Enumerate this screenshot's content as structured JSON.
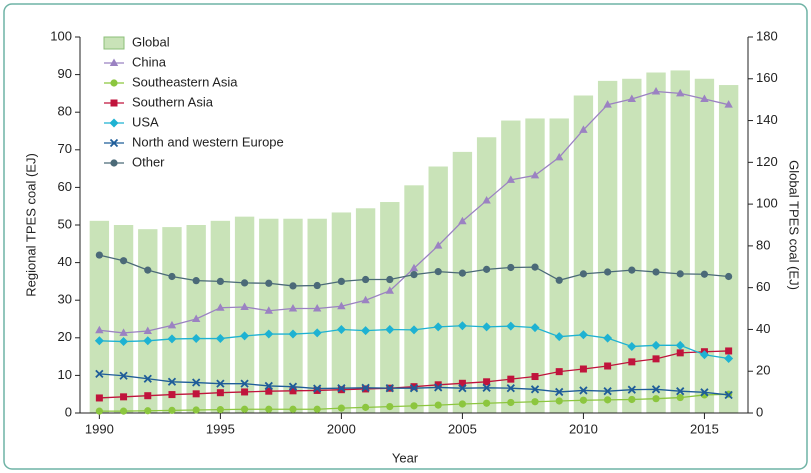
{
  "chart_data": {
    "type": "combo",
    "xlabel": "Year",
    "ylabel": "Regional TPES coal (EJ)",
    "y2label": "Global TPES coal (EJ)",
    "x": [
      1990,
      1991,
      1992,
      1993,
      1994,
      1995,
      1996,
      1997,
      1998,
      1999,
      2000,
      2001,
      2002,
      2003,
      2004,
      2005,
      2006,
      2007,
      2008,
      2009,
      2010,
      2011,
      2012,
      2013,
      2014,
      2015,
      2016
    ],
    "xlim": [
      1989.2,
      2016.8
    ],
    "xticks": [
      1990,
      1995,
      2000,
      2005,
      2010,
      2015
    ],
    "ylim": [
      0,
      100
    ],
    "yticks": [
      0,
      10,
      20,
      30,
      40,
      50,
      60,
      70,
      80,
      90,
      100
    ],
    "y2lim": [
      0,
      180
    ],
    "y2ticks": [
      0,
      20,
      40,
      60,
      80,
      100,
      120,
      140,
      160,
      180
    ],
    "legend": "upper left",
    "series": [
      {
        "name": "Global",
        "type": "bar",
        "axis": "y2",
        "color": "#c9e3b8",
        "values": [
          92,
          90,
          88,
          89,
          90,
          92,
          94,
          93,
          93,
          93,
          96,
          98,
          101,
          109,
          118,
          125,
          132,
          140,
          141,
          141,
          152,
          159,
          160,
          163,
          164,
          160,
          157
        ]
      },
      {
        "name": "China",
        "type": "line",
        "marker": "triangle",
        "color": "#9b82c2",
        "values": [
          22,
          21.3,
          21.8,
          23.3,
          25,
          28,
          28.2,
          27.2,
          27.8,
          27.8,
          28.4,
          30,
          32.5,
          38.5,
          44.5,
          51,
          56.5,
          62,
          63.2,
          68,
          75.3,
          82,
          83.5,
          85.5,
          85,
          83.5,
          82
        ]
      },
      {
        "name": "Southeastern Asia",
        "type": "line",
        "marker": "circle",
        "color": "#8cc63f",
        "values": [
          0.5,
          0.5,
          0.6,
          0.7,
          0.8,
          0.9,
          1,
          1,
          1,
          1,
          1.3,
          1.5,
          1.7,
          1.9,
          2.1,
          2.4,
          2.6,
          2.8,
          3,
          3.2,
          3.4,
          3.5,
          3.6,
          3.8,
          4.1,
          4.8,
          5
        ]
      },
      {
        "name": "Southern Asia",
        "type": "line",
        "marker": "square",
        "color": "#c0143c",
        "values": [
          4,
          4.3,
          4.6,
          4.9,
          5.1,
          5.4,
          5.6,
          5.8,
          5.9,
          6,
          6.2,
          6.4,
          6.6,
          7,
          7.5,
          7.9,
          8.3,
          9,
          9.7,
          11,
          11.7,
          12.5,
          13.6,
          14.4,
          16,
          16.3,
          16.5
        ]
      },
      {
        "name": "USA",
        "type": "line",
        "marker": "diamond",
        "color": "#1eb2d2",
        "values": [
          19.2,
          19,
          19.2,
          19.7,
          19.8,
          19.8,
          20.5,
          21,
          21,
          21.3,
          22.2,
          21.9,
          22.2,
          22.1,
          22.9,
          23.2,
          22.9,
          23.1,
          22.7,
          20.3,
          20.8,
          19.9,
          17.7,
          18,
          18,
          15.5,
          14.5
        ]
      },
      {
        "name": "North and western Europe",
        "type": "line",
        "marker": "x",
        "color": "#1f5d99",
        "values": [
          10.4,
          9.9,
          9.1,
          8.3,
          8.1,
          7.8,
          7.8,
          7.2,
          7,
          6.5,
          6.6,
          6.7,
          6.6,
          6.6,
          6.8,
          6.6,
          6.7,
          6.6,
          6.3,
          5.6,
          6,
          5.8,
          6.2,
          6.3,
          5.8,
          5.5,
          4.8
        ]
      },
      {
        "name": "Other",
        "type": "line",
        "marker": "circle",
        "color": "#4b6a78",
        "values": [
          42,
          40.5,
          38,
          36.3,
          35.2,
          35,
          34.6,
          34.5,
          33.8,
          33.9,
          35,
          35.5,
          35.5,
          36.8,
          37.6,
          37.2,
          38.2,
          38.7,
          38.8,
          35.3,
          37,
          37.5,
          38,
          37.5,
          37,
          36.9,
          36.3
        ]
      }
    ]
  }
}
